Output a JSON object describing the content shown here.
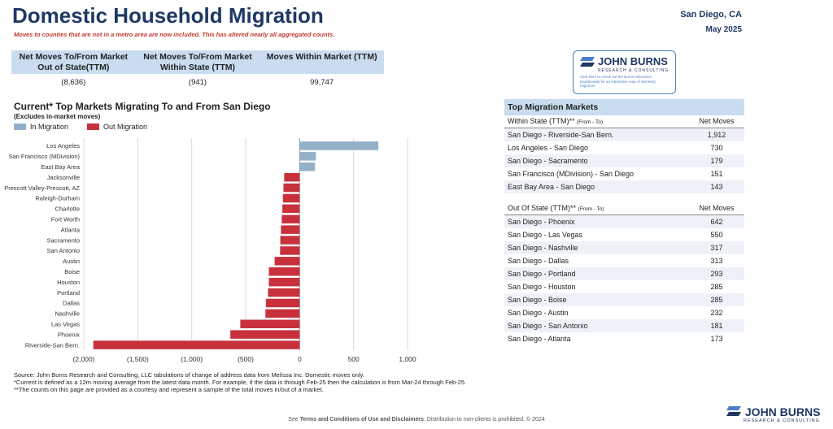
{
  "header": {
    "title": "Domestic Household Migration",
    "subtitle": "Moves to counties that are not in a metro area are now included. This has altered nearly all aggregated counts.",
    "location": "San Diego, CA",
    "date": "May 2025"
  },
  "summary": {
    "columns": [
      {
        "label": "Net Moves To/From Market Out of State(TTM)",
        "value": "(8,636)"
      },
      {
        "label": "Net Moves To/From Market Within State (TTM)",
        "value": "(941)"
      },
      {
        "label": "Moves Within Market (TTM)",
        "value": "99,747"
      }
    ]
  },
  "logo": {
    "brand": "JOHN BURNS",
    "sub": "RESEARCH & CONSULTING",
    "note": "Click here to check out the Burns Interactive Dashboards for an interactive map of domestic migration"
  },
  "colors": {
    "in": "#94afc8",
    "out": "#c8313c",
    "title": "#1f3864"
  },
  "chart_data": {
    "type": "bar",
    "orientation": "horizontal",
    "title": "Current* Top Markets Migrating To and From San Diego",
    "subtitle": "(Excludes in-market moves)",
    "legend": [
      "In Migration",
      "Out Migration"
    ],
    "legend_position": "top-left",
    "xlim": [
      -2000,
      1000
    ],
    "ticks": [
      -2000,
      -1500,
      -1000,
      -500,
      0,
      500,
      1000
    ],
    "tick_labels": [
      "(2,000)",
      "(1,500)",
      "(1,000)",
      "(500)",
      "0",
      "500",
      "1,000"
    ],
    "grid": true,
    "categories": [
      "Los Angeles",
      "San Francisco (MDivision)",
      "East Bay Area",
      "Jacksonville",
      "Prescott Valley-Prescott, AZ",
      "Raleigh-Durham",
      "Charlotte",
      "Fort Worth",
      "Atlanta",
      "Sacramento",
      "San Antonio",
      "Austin",
      "Boise",
      "Houston",
      "Portland",
      "Dallas",
      "Nashville",
      "Las Vegas",
      "Phoenix",
      "Riverside-San Bern."
    ],
    "values": [
      730,
      151,
      143,
      -143,
      -150,
      -155,
      -160,
      -166,
      -173,
      -179,
      -181,
      -232,
      -285,
      -285,
      -293,
      -313,
      -317,
      -550,
      -642,
      -1912
    ]
  },
  "top_markets": {
    "title": "Top Migration Markets",
    "within": {
      "label": "Within State (TTM)**",
      "label_small": "(From - To)",
      "col": "Net Moves",
      "rows": [
        {
          "name": "San Diego - Riverside-San Bern.",
          "value": "1,912"
        },
        {
          "name": "Los Angeles - San Diego",
          "value": "730"
        },
        {
          "name": "San Diego - Sacramento",
          "value": "179"
        },
        {
          "name": "San Francisco (MDivision) - San Diego",
          "value": "151"
        },
        {
          "name": "East Bay Area - San Diego",
          "value": "143"
        }
      ]
    },
    "out": {
      "label": "Out Of State (TTM)**",
      "label_small": "(From - To)",
      "col": "Net Moves",
      "rows": [
        {
          "name": "San Diego - Phoenix",
          "value": "642"
        },
        {
          "name": "San Diego - Las Vegas",
          "value": "550"
        },
        {
          "name": "San Diego - Nashville",
          "value": "317"
        },
        {
          "name": "San Diego - Dallas",
          "value": "313"
        },
        {
          "name": "San Diego - Portland",
          "value": "293"
        },
        {
          "name": "San Diego - Houston",
          "value": "285"
        },
        {
          "name": "San Diego - Boise",
          "value": "285"
        },
        {
          "name": "San Diego - Austin",
          "value": "232"
        },
        {
          "name": "San Diego - San Antonio",
          "value": "181"
        },
        {
          "name": "San Diego - Atlanta",
          "value": "173"
        }
      ]
    }
  },
  "footnotes": [
    "Source: John Burns Research and Consulting, LLC tabulations of change of address data from Melissa Inc. Domestic moves only.",
    "*Current is defined as a 12m moving average from the latest data month. For example, if the data is through Feb-25 then the calculation is from Mar-24 through Feb-25.",
    "**The counts on this page are provided as a courtesy and represent a sample of the total moves in/out of a market."
  ],
  "footer": {
    "pre": "See ",
    "link": "Terms and Conditions of Use and Disclaimers",
    "post": ". Distribution to non-clients is prohibited. © 2024"
  }
}
